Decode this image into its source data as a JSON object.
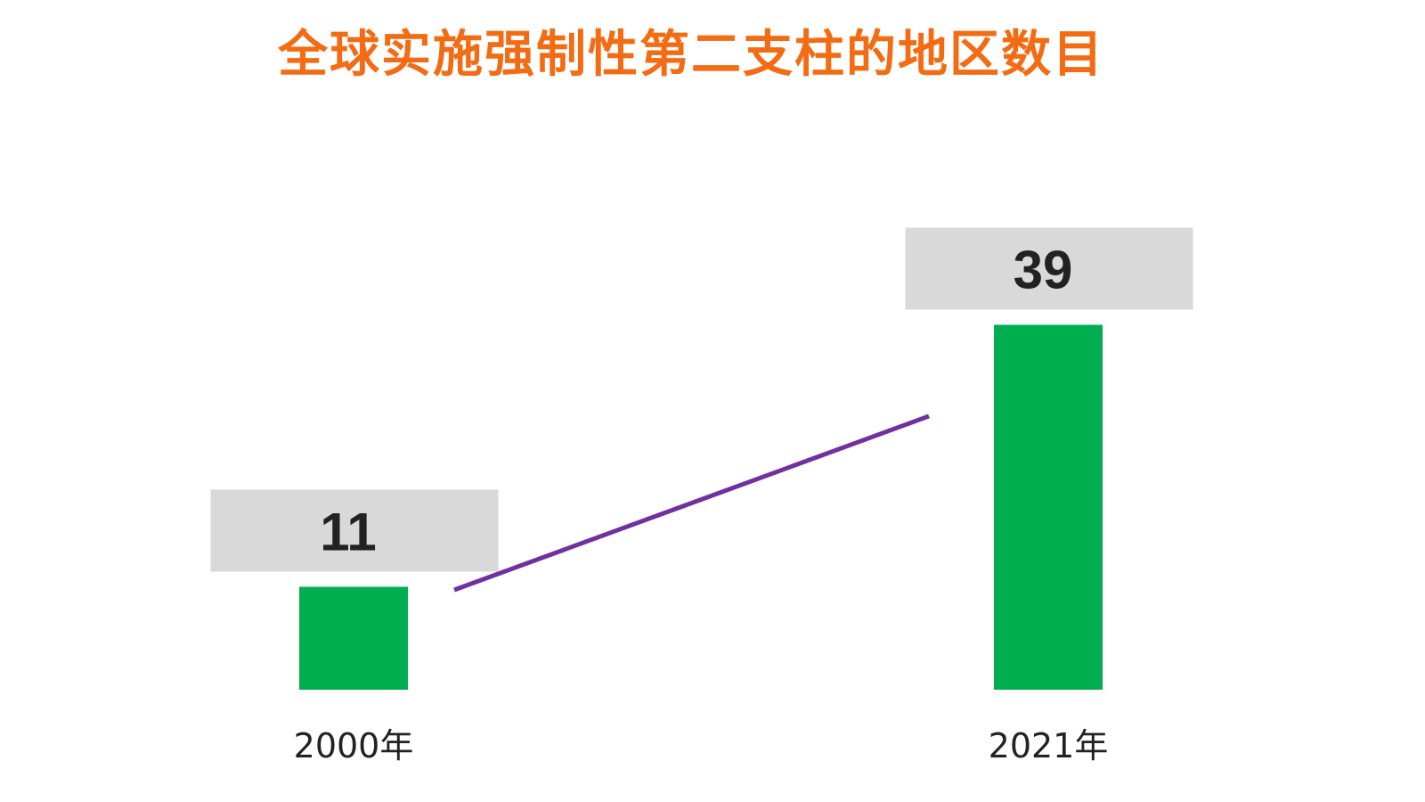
{
  "colors": {
    "title": "#f36b12",
    "bar": "#00ad4f",
    "label_box": "#d9d9d9",
    "value_text": "#222222",
    "category_text": "#222222",
    "trend_line": "#7030a0"
  },
  "chart_data": {
    "type": "bar",
    "title": "全球实施强制性第二支柱的地区数目",
    "categories": [
      "2000年",
      "2021年"
    ],
    "values": [
      11,
      39
    ],
    "value_labels": [
      "11",
      "39"
    ],
    "ylim": [
      0,
      45
    ],
    "grid": false,
    "legend": "none",
    "trend_line": true
  }
}
